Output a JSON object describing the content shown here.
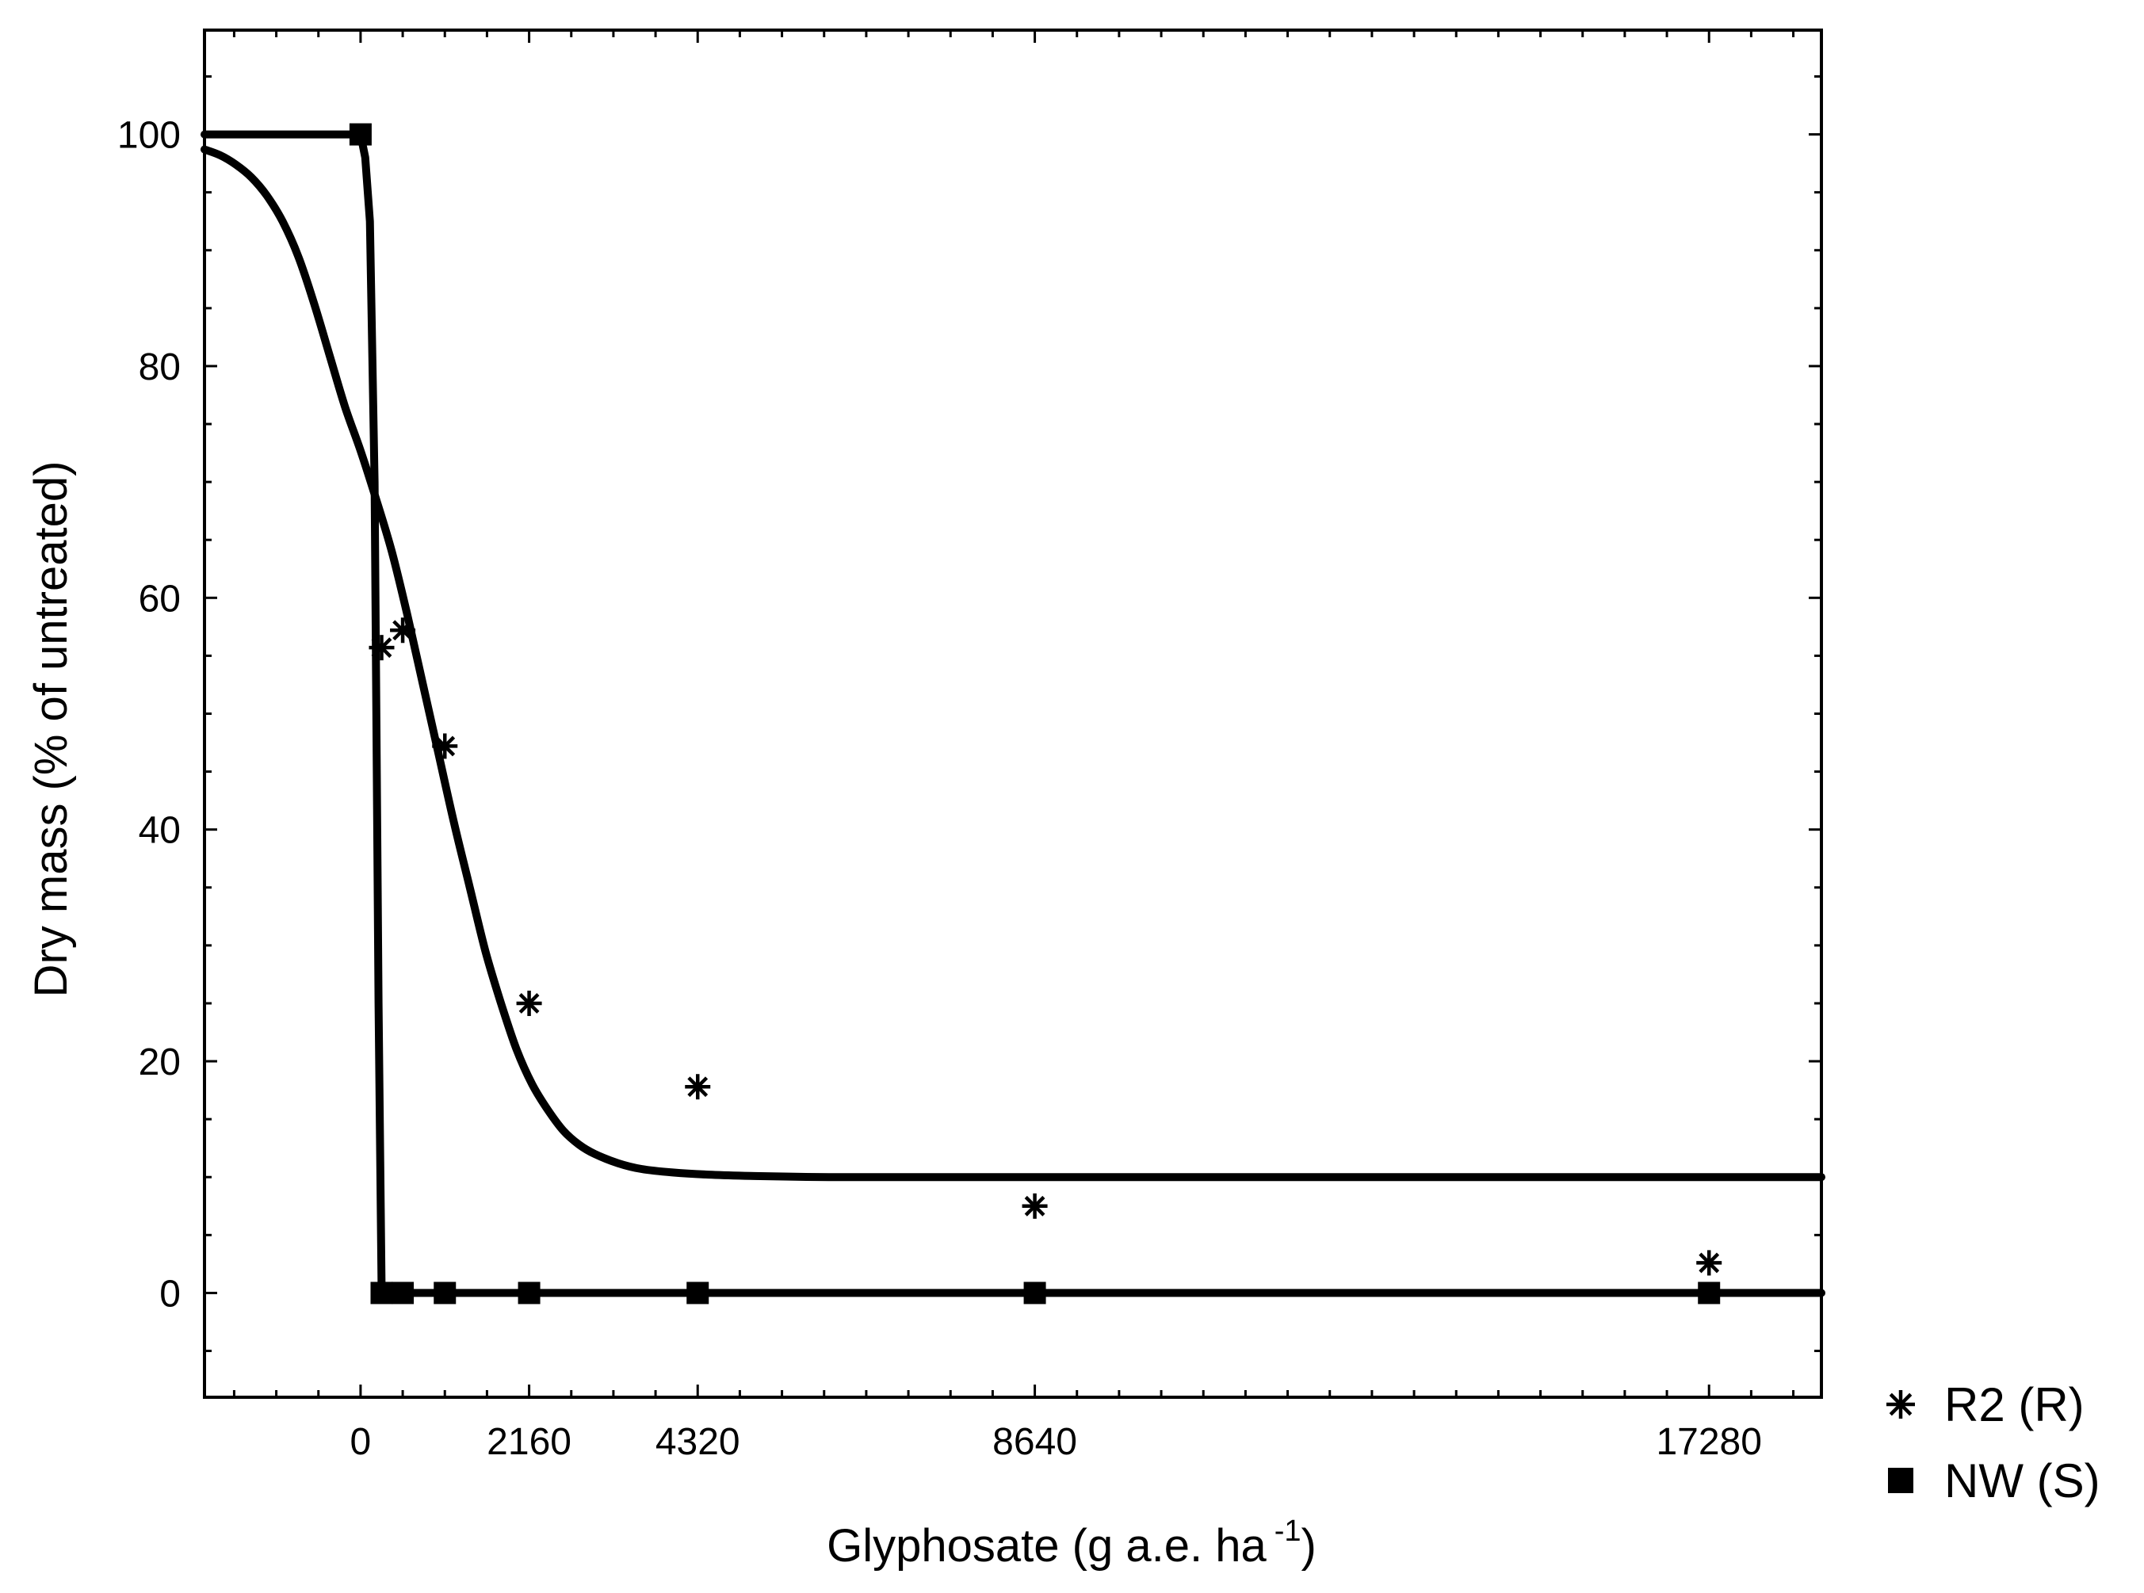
{
  "chart_data": {
    "type": "scatter",
    "xlabel": "Glyphosate (g a.e. ha",
    "xlabel_superscript": "-1",
    "xlabel_suffix": ")",
    "ylabel": "Dry mass (% of untreated)",
    "xlim": [
      -2000,
      18720
    ],
    "ylim": [
      -9,
      109
    ],
    "x_ticks": [
      0,
      2160,
      4320,
      8640,
      17280
    ],
    "y_ticks": [
      0,
      20,
      40,
      60,
      80,
      100
    ],
    "grid": false,
    "legend_position": "bottom-right, outside plot",
    "series": [
      {
        "name": "R2 (R)",
        "marker": "asterisk",
        "points": [
          {
            "x": 270,
            "y": 55.7
          },
          {
            "x": 540,
            "y": 57.2
          },
          {
            "x": 1080,
            "y": 47.2
          },
          {
            "x": 2160,
            "y": 25.0
          },
          {
            "x": 4320,
            "y": 17.8
          },
          {
            "x": 8640,
            "y": 7.5
          },
          {
            "x": 17280,
            "y": 2.6
          }
        ],
        "fit_curve": {
          "x": [
            -2000,
            -1800,
            -1600,
            -1400,
            -1200,
            -1000,
            -800,
            -600,
            -400,
            -200,
            0,
            200,
            400,
            600,
            800,
            1000,
            1200,
            1400,
            1600,
            1800,
            2000,
            2200,
            2400,
            2600,
            2800,
            3000,
            3300,
            3600,
            4000,
            4500,
            5000,
            6000,
            8000,
            12000,
            18720
          ],
          "y": [
            98.7,
            98.2,
            97.4,
            96.3,
            94.7,
            92.5,
            89.5,
            85.5,
            81.0,
            76.5,
            72.7,
            68.5,
            64.0,
            58.5,
            52.5,
            46.5,
            40.5,
            35.0,
            29.5,
            25.0,
            21.0,
            18.0,
            15.8,
            14.0,
            12.8,
            12.0,
            11.2,
            10.7,
            10.4,
            10.2,
            10.1,
            10.0,
            10.0,
            10.0,
            10.0
          ]
        }
      },
      {
        "name": "NW (S)",
        "marker": "square",
        "points": [
          {
            "x": 0,
            "y": 100
          },
          {
            "x": 270,
            "y": 0
          },
          {
            "x": 540,
            "y": 0
          },
          {
            "x": 1080,
            "y": 0
          },
          {
            "x": 2160,
            "y": 0
          },
          {
            "x": 4320,
            "y": 0
          },
          {
            "x": 8640,
            "y": 0
          },
          {
            "x": 17280,
            "y": 0
          }
        ],
        "fit_curve": {
          "x": [
            -2000,
            0,
            60,
            120,
            180,
            230,
            270,
            18720
          ],
          "y": [
            100,
            100,
            98,
            92.5,
            70,
            25,
            0,
            0
          ]
        }
      }
    ]
  }
}
